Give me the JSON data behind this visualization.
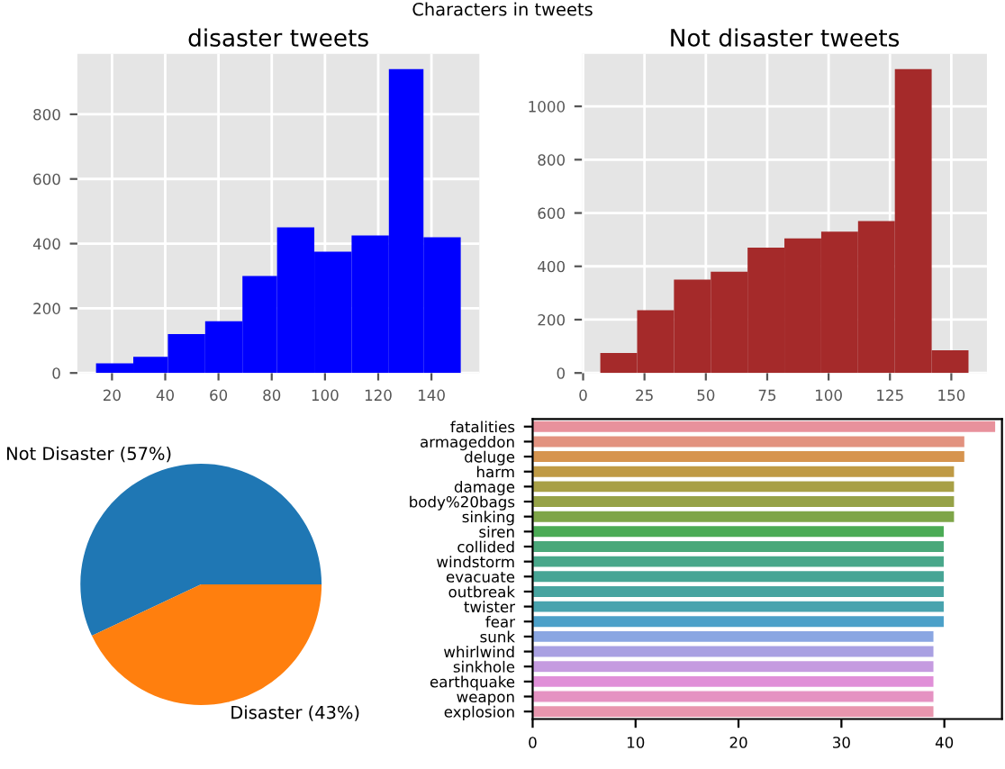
{
  "chart_data": [
    {
      "type": "histogram",
      "title": "disaster tweets",
      "annotations": [
        "Characters in tweets"
      ],
      "bins": [
        14,
        28,
        41,
        55,
        69,
        82,
        96,
        110,
        124,
        137,
        151
      ],
      "values": [
        30,
        50,
        120,
        160,
        300,
        450,
        375,
        425,
        940,
        420
      ],
      "color": "#0000ff",
      "xlim": [
        7,
        158
      ],
      "ylim": [
        0,
        987
      ],
      "xticks": [
        20,
        40,
        60,
        80,
        100,
        120,
        140
      ],
      "yticks": [
        0,
        200,
        400,
        600,
        800
      ],
      "grid": true
    },
    {
      "type": "histogram",
      "title": "Not disaster tweets",
      "bins": [
        7,
        22,
        37,
        52,
        67,
        82,
        97,
        112,
        127,
        142,
        157
      ],
      "values": [
        75,
        235,
        350,
        380,
        470,
        505,
        530,
        570,
        1140,
        85
      ],
      "color": "#a52a2a",
      "xlim": [
        -0.5,
        164.5
      ],
      "ylim": [
        0,
        1197
      ],
      "xticks": [
        0,
        25,
        50,
        75,
        100,
        125,
        150
      ],
      "yticks": [
        0,
        200,
        400,
        600,
        800,
        1000
      ],
      "grid": true
    },
    {
      "type": "pie",
      "categories": [
        "Not Disaster (57%)",
        "Disaster (43%)"
      ],
      "values": [
        57,
        43
      ],
      "colors": [
        "#1f77b4",
        "#ff7f0e"
      ]
    },
    {
      "type": "bar",
      "orientation": "horizontal",
      "categories": [
        "fatalities",
        "armageddon",
        "deluge",
        "harm",
        "damage",
        "body%20bags",
        "sinking",
        "siren",
        "collided",
        "windstorm",
        "evacuate",
        "outbreak",
        "twister",
        "fear",
        "sunk",
        "whirlwind",
        "sinkhole",
        "earthquake",
        "weapon",
        "explosion"
      ],
      "values": [
        45,
        42,
        42,
        41,
        41,
        41,
        41,
        40,
        40,
        40,
        40,
        40,
        40,
        40,
        39,
        39,
        39,
        39,
        39,
        39
      ],
      "colors": [
        "#e8919c",
        "#e2927f",
        "#d6944f",
        "#bf9a45",
        "#a8a046",
        "#96a247",
        "#7ea548",
        "#4bab55",
        "#4aa87a",
        "#48a78a",
        "#47a595",
        "#47a4a0",
        "#48a3ae",
        "#4ba0c8",
        "#8aa6e2",
        "#a9a0e2",
        "#c59be0",
        "#e08fd8",
        "#e592c2",
        "#e896ae"
      ],
      "xlim": [
        0,
        45.6
      ],
      "xticks": [
        0,
        10,
        20,
        30,
        40
      ]
    }
  ]
}
